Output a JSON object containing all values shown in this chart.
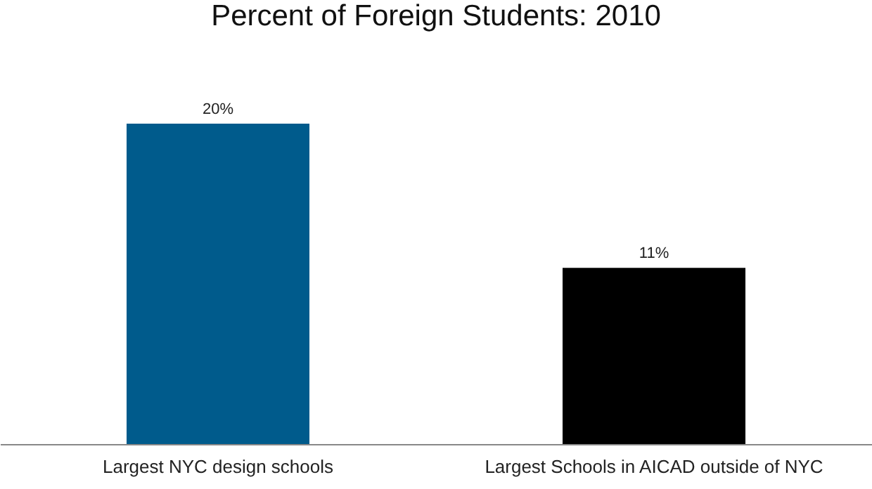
{
  "chart_data": {
    "type": "bar",
    "title": "Percent of Foreign Students: 2010",
    "categories": [
      "Largest NYC design schools",
      "Largest Schools in AICAD outside of NYC"
    ],
    "values": [
      20,
      11
    ],
    "colors": [
      "#005b8c",
      "#000000"
    ],
    "value_labels": [
      "20%",
      "11%"
    ]
  }
}
